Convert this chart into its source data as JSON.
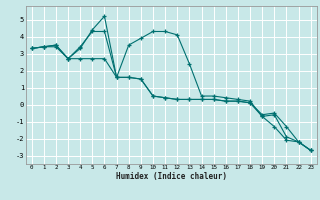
{
  "xlabel": "Humidex (Indice chaleur)",
  "bg_color": "#c8e8e8",
  "line_color": "#007070",
  "xlim": [
    -0.5,
    23.5
  ],
  "ylim": [
    -3.5,
    5.8
  ],
  "xticks": [
    0,
    1,
    2,
    3,
    4,
    5,
    6,
    7,
    8,
    9,
    10,
    11,
    12,
    13,
    14,
    15,
    16,
    17,
    18,
    19,
    20,
    21,
    22,
    23
  ],
  "yticks": [
    -3,
    -2,
    -1,
    0,
    1,
    2,
    3,
    4,
    5
  ],
  "series1_x": [
    0,
    1,
    2,
    3,
    4,
    5,
    6,
    7,
    8,
    9,
    10,
    11,
    12,
    13,
    14,
    15,
    16,
    17,
    18,
    19,
    20,
    21,
    22,
    23
  ],
  "series1_y": [
    3.3,
    3.4,
    3.4,
    2.7,
    2.7,
    2.7,
    2.7,
    1.6,
    1.6,
    1.5,
    0.5,
    0.4,
    0.3,
    0.3,
    0.3,
    0.3,
    0.2,
    0.2,
    0.1,
    -0.7,
    -1.3,
    -2.1,
    -2.2,
    -2.7
  ],
  "series2_x": [
    0,
    1,
    2,
    3,
    4,
    5,
    6,
    7,
    8,
    9,
    10,
    11,
    12,
    13,
    14,
    15,
    16,
    17,
    18,
    19,
    20,
    21,
    22,
    23
  ],
  "series2_y": [
    3.3,
    3.4,
    3.5,
    2.7,
    3.3,
    4.4,
    5.2,
    1.6,
    3.5,
    3.9,
    4.3,
    4.3,
    4.1,
    2.4,
    0.5,
    0.5,
    0.4,
    0.3,
    0.2,
    -0.7,
    -0.6,
    -1.9,
    -2.2,
    -2.7
  ],
  "series3_x": [
    0,
    1,
    2,
    3,
    4,
    5,
    6,
    7,
    8,
    9,
    10,
    11,
    12,
    13,
    14,
    15,
    16,
    17,
    18,
    19,
    20,
    21,
    22,
    23
  ],
  "series3_y": [
    3.3,
    3.4,
    3.5,
    2.7,
    3.4,
    4.3,
    4.3,
    1.6,
    1.6,
    1.5,
    0.5,
    0.4,
    0.3,
    0.3,
    0.3,
    0.3,
    0.2,
    0.2,
    0.1,
    -0.6,
    -0.5,
    -1.3,
    -2.2,
    -2.7
  ]
}
